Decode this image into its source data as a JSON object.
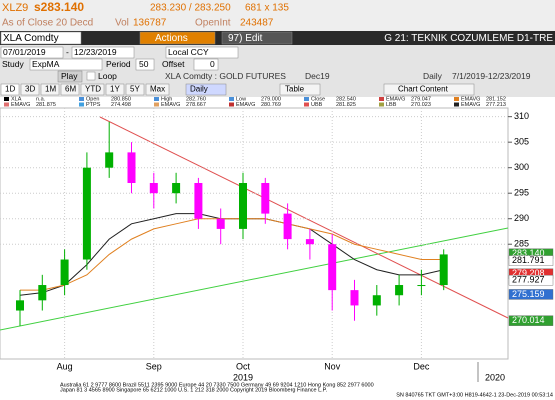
{
  "header": {
    "ticker": "XLZ9",
    "price": "s283.140",
    "bid_ask": "283.230 / 283.250",
    "size": "681 x 135",
    "as_of": "As of Close 20 Decd",
    "vol_label": "Vol",
    "vol": "136787",
    "oi_label": "OpenInt",
    "oi": "243487"
  },
  "toolbar": {
    "security": "XLA Comdty",
    "actions": "Actions",
    "edit": "97) Edit",
    "page_title": "G 21: TEKNIK COZUMLEME D1-TRE",
    "start": "07/01/2019",
    "dash": "-",
    "end": "12/23/2019",
    "currency": "Local CCY",
    "study_label": "Study",
    "study": "ExpMA",
    "period_label": "Period",
    "period": "50",
    "offset_label": "Offset",
    "offset": "0",
    "play": "Play",
    "loop": "Loop",
    "chart_name": "XLA Comdty : GOLD FUTURES",
    "contract": "Dec19",
    "frequency": "Daily",
    "range": "7/1/2019-12/23/2019",
    "buttons": [
      "1D",
      "3D",
      "1M",
      "6M",
      "YTD",
      "1Y",
      "5Y",
      "Max"
    ],
    "freq_button": "Daily",
    "table": "Table",
    "content": "Chart Content"
  },
  "legend": [
    [
      {
        "name": "XLA",
        "value": "n.a.",
        "color": "#000000"
      },
      {
        "name": "Open",
        "value": "280.850",
        "color": "#4a90d9"
      },
      {
        "name": "High",
        "value": "282.760",
        "color": "#4a90d9"
      },
      {
        "name": "Low",
        "value": "279.000",
        "color": "#4a90d9"
      },
      {
        "name": "Close",
        "value": "282.540",
        "color": "#4a90d9"
      },
      {
        "name": "EMAVG",
        "value": "279.047",
        "color": "#d04040"
      },
      {
        "name": "EMAVG",
        "value": "281.152",
        "color": "#e08020"
      }
    ],
    [
      {
        "name": "EMAVG",
        "value": "281.875",
        "color": "#e07070"
      },
      {
        "name": "PTPS",
        "value": "274.498",
        "color": "#40a0e0"
      },
      {
        "name": "EMAVG",
        "value": "278.667",
        "color": "#e0a060"
      },
      {
        "name": "EMAVG",
        "value": "280.769",
        "color": "#c03030"
      },
      {
        "name": "UBB",
        "value": "281.825",
        "color": "#e05050"
      },
      {
        "name": "LBB",
        "value": "270.023",
        "color": "#a0a040"
      },
      {
        "name": "EMAVG",
        "value": "277.213",
        "color": "#202020"
      }
    ]
  ],
  "chart_data": {
    "type": "candlestick",
    "categories": [
      null,
      null,
      "Aug",
      null,
      null,
      null,
      "Sep",
      null,
      null,
      null,
      "Oct",
      null,
      null,
      null,
      "Nov",
      null,
      null,
      null,
      "Dec",
      null
    ],
    "open": [
      272,
      274,
      277,
      282,
      300,
      303,
      297,
      295,
      297,
      290,
      288,
      297,
      291,
      286,
      285,
      276,
      273,
      275,
      277,
      277
    ],
    "high": [
      276,
      279,
      284,
      303,
      309,
      305,
      299,
      299,
      298,
      292,
      299,
      298,
      293,
      288,
      287,
      278,
      277,
      279,
      280,
      284
    ],
    "low": [
      269,
      272,
      275,
      280,
      298,
      295,
      292,
      293,
      288,
      285,
      286,
      289,
      284,
      282,
      272,
      270,
      271,
      273,
      275,
      276
    ],
    "close": [
      274,
      277,
      282,
      300,
      303,
      297,
      295,
      297,
      290,
      288,
      297,
      291,
      286,
      285,
      276,
      273,
      275,
      277,
      277,
      283
    ],
    "up_color": "#00b000",
    "down_color": "#ff00ff",
    "lines": [
      {
        "color": "#202020",
        "values": [
          275,
          275.5,
          277,
          281,
          286,
          289,
          290,
          291,
          291,
          290,
          290,
          290,
          289,
          288,
          285,
          282,
          280,
          279,
          279,
          280
        ]
      },
      {
        "color": "#e08020",
        "values": [
          276,
          276,
          277,
          279,
          283,
          286,
          288,
          289,
          290,
          290,
          290,
          290,
          289,
          288,
          287,
          285,
          284,
          283,
          282,
          282
        ]
      }
    ],
    "year_labels": [
      "2019",
      "2020"
    ],
    "ylim": [
      262.5,
      311.7
    ],
    "yticks": [
      285,
      290,
      295,
      300,
      305,
      310
    ],
    "grid": true,
    "price_tags": [
      {
        "value": 283.14,
        "label": "283.140",
        "color": "#30a030"
      },
      {
        "value": 281.791,
        "label": "281.791",
        "color": "#ffffff"
      },
      {
        "value": 279.208,
        "label": "279.208",
        "color": "#e03030"
      },
      {
        "value": 277.927,
        "label": "277.927",
        "color": "#ffffff"
      },
      {
        "value": 275.159,
        "label": "275.159",
        "color": "#3070d0"
      },
      {
        "value": 270.014,
        "label": "270.014",
        "color": "#30a030"
      }
    ]
  },
  "footer": [
    "Australia 61 2 9777 8600 Brazil 5511 2395 9000 Europe 44 20 7330 7500 Germany 49 69 9204 1210 Hong Kong 852 2977 6000",
    "Japan 81 3 4565 8900 Singapore 65 6212 1000 U.S. 1 212 318 2000 Copyright 2019 Bloomberg Finance L.P.",
    "SN 840765 TKT GMT+3:00 H819-4642-1 23-Dec-2019 00:53:14"
  ]
}
